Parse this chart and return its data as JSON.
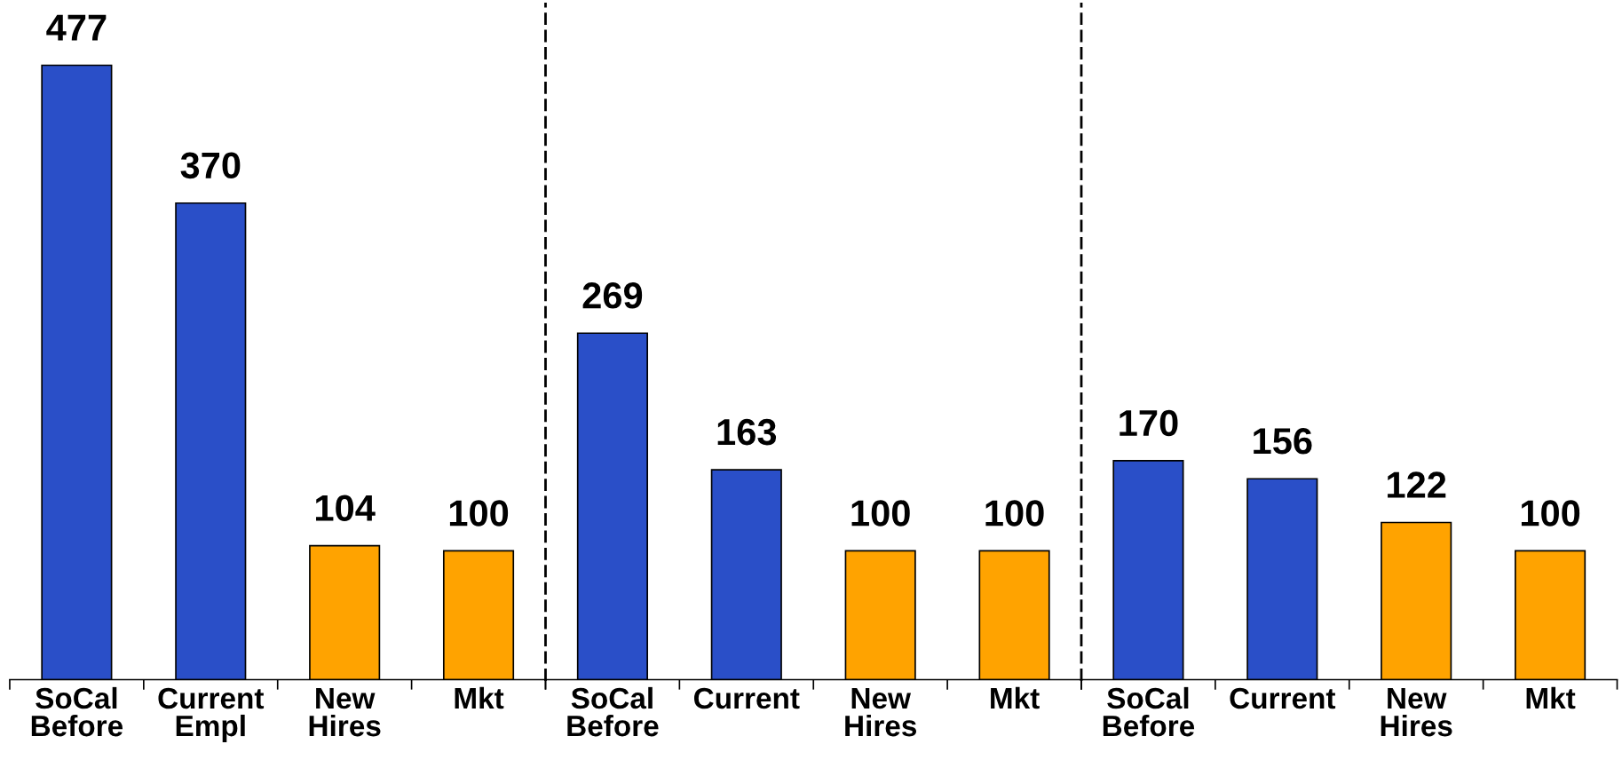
{
  "chart_data": [
    {
      "type": "bar",
      "categories": [
        "SoCal\nBefore",
        "Current\nEmpl",
        "New\nHires",
        "Mkt"
      ],
      "values": [
        477,
        370,
        104,
        100
      ],
      "colors": [
        "#2a4fc8",
        "#2a4fc8",
        "#ffa300",
        "#ffa300"
      ],
      "data_labels": true,
      "tick_labels": "x",
      "grid": false
    },
    {
      "type": "bar",
      "categories": [
        "SoCal\nBefore",
        "Current",
        "New\nHires",
        "Mkt"
      ],
      "values": [
        269,
        163,
        100,
        100
      ],
      "colors": [
        "#2a4fc8",
        "#2a4fc8",
        "#ffa300",
        "#ffa300"
      ],
      "data_labels": true,
      "tick_labels": "x",
      "grid": false
    },
    {
      "type": "bar",
      "categories": [
        "SoCal\nBefore",
        "Current",
        "New\nHires",
        "Mkt"
      ],
      "values": [
        170,
        156,
        122,
        100
      ],
      "colors": [
        "#2a4fc8",
        "#2a4fc8",
        "#ffa300",
        "#ffa300"
      ],
      "data_labels": true,
      "tick_labels": "x",
      "grid": false
    }
  ]
}
